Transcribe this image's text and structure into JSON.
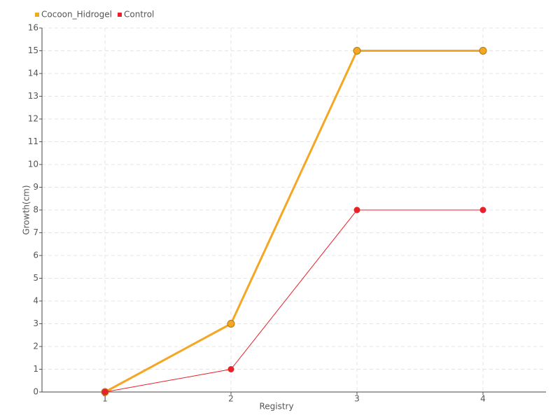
{
  "chart_data": {
    "type": "line",
    "categories": [
      "1",
      "2",
      "3",
      "4"
    ],
    "series": [
      {
        "name": "Cocoon_Hidrogel",
        "color": "#f5a623",
        "values": [
          0,
          3,
          15,
          15
        ]
      },
      {
        "name": "Control",
        "color": "#e8202a",
        "values": [
          0,
          1,
          8,
          8
        ]
      }
    ],
    "x_label": "Registry",
    "y_label": "Growth(cm)",
    "ylim": [
      0,
      16
    ],
    "yticks": [
      0,
      1,
      2,
      3,
      4,
      5,
      6,
      7,
      8,
      9,
      10,
      11,
      12,
      13,
      14,
      15,
      16
    ],
    "grid": true,
    "legend": "top-left"
  }
}
